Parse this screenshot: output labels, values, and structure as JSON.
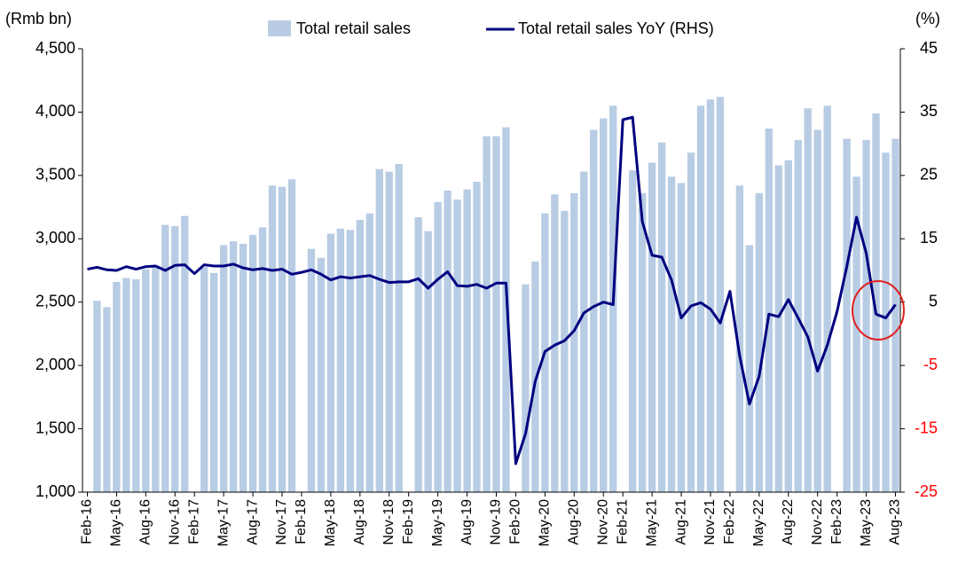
{
  "chart_data": {
    "type": "bar-line",
    "y_label": "(Rmb bn)",
    "y2_label": "(%)",
    "categories": [
      "Feb-16",
      null,
      null,
      "May-16",
      null,
      null,
      "Aug-16",
      null,
      null,
      "Nov-16",
      null,
      "Feb-17",
      null,
      null,
      "May-17",
      null,
      null,
      "Aug-17",
      null,
      null,
      "Nov-17",
      null,
      "Feb-18",
      null,
      null,
      "May-18",
      null,
      null,
      "Aug-18",
      null,
      null,
      "Nov-18",
      null,
      "Feb-19",
      null,
      null,
      "May-19",
      null,
      null,
      "Aug-19",
      null,
      null,
      "Nov-19",
      null,
      "Feb-20",
      null,
      null,
      "May-20",
      null,
      null,
      "Aug-20",
      null,
      null,
      "Nov-20",
      null,
      "Feb-21",
      null,
      null,
      "May-21",
      null,
      null,
      "Aug-21",
      null,
      null,
      "Nov-21",
      null,
      "Feb-22",
      null,
      null,
      "May-22",
      null,
      null,
      "Aug-22",
      null,
      null,
      "Nov-22",
      null,
      "Feb-23",
      null,
      null,
      "May-23",
      null,
      null,
      "Aug-23"
    ],
    "series": [
      {
        "name": "Total retail sales",
        "type": "bar",
        "color": "#b8cce4",
        "values": [
          null,
          2510,
          2460,
          2660,
          2690,
          2680,
          2760,
          2790,
          3110,
          3100,
          3180,
          null,
          2780,
          2730,
          2950,
          2980,
          2960,
          3030,
          3090,
          3420,
          3410,
          3470,
          null,
          2920,
          2850,
          3040,
          3080,
          3070,
          3150,
          3200,
          3550,
          3530,
          3590,
          null,
          3170,
          3060,
          3290,
          3380,
          3310,
          3390,
          3450,
          3810,
          3810,
          3880,
          null,
          2640,
          2820,
          3200,
          3350,
          3220,
          3360,
          3530,
          3860,
          3950,
          4050,
          null,
          3540,
          3360,
          3600,
          3760,
          3490,
          3440,
          3680,
          4050,
          4100,
          4120,
          null,
          3420,
          2950,
          3360,
          3870,
          3580,
          3620,
          3780,
          4030,
          3860,
          4050,
          null,
          3790,
          3490,
          3780,
          3990,
          3680,
          3790
        ]
      },
      {
        "name": "Total retail sales YoY (RHS)",
        "type": "line",
        "axis": "y2",
        "color": "#000080",
        "values": [
          10.2,
          10.5,
          10.1,
          10.0,
          10.6,
          10.2,
          10.6,
          10.7,
          10.0,
          10.8,
          10.9,
          9.5,
          10.9,
          10.7,
          10.7,
          11.0,
          10.4,
          10.1,
          10.3,
          10.0,
          10.2,
          9.4,
          9.7,
          10.1,
          9.4,
          8.5,
          9.0,
          8.8,
          9.0,
          9.2,
          8.6,
          8.1,
          8.2,
          8.2,
          8.7,
          7.2,
          8.6,
          9.8,
          7.6,
          7.5,
          7.8,
          7.2,
          8.0,
          8.0,
          -20.5,
          -15.8,
          -7.5,
          -2.8,
          -1.8,
          -1.1,
          0.5,
          3.3,
          4.3,
          5.0,
          4.6,
          33.8,
          34.2,
          17.7,
          12.4,
          12.1,
          8.5,
          2.5,
          4.4,
          4.9,
          3.9,
          1.7,
          6.7,
          -3.5,
          -11.1,
          -6.7,
          3.1,
          2.7,
          5.4,
          2.5,
          -0.5,
          -5.9,
          -1.8,
          3.5,
          10.6,
          18.4,
          12.7,
          3.1,
          2.5,
          4.6
        ]
      }
    ],
    "ylim": [
      1000,
      4500
    ],
    "yticks": [
      {
        "value": 1000,
        "label": "1,000"
      },
      {
        "value": 1500,
        "label": "1,500"
      },
      {
        "value": 2000,
        "label": "2,000"
      },
      {
        "value": 2500,
        "label": "2,500"
      },
      {
        "value": 3000,
        "label": "3,000"
      },
      {
        "value": 3500,
        "label": "3,500"
      },
      {
        "value": 4000,
        "label": "4,000"
      },
      {
        "value": 4500,
        "label": "4,500"
      }
    ],
    "y2lim": [
      -25,
      45
    ],
    "y2ticks": [
      -25,
      -15,
      -5,
      5,
      15,
      25,
      35,
      45
    ],
    "negative_tick_color": "#ff0000",
    "grid": false,
    "legend": "top"
  }
}
